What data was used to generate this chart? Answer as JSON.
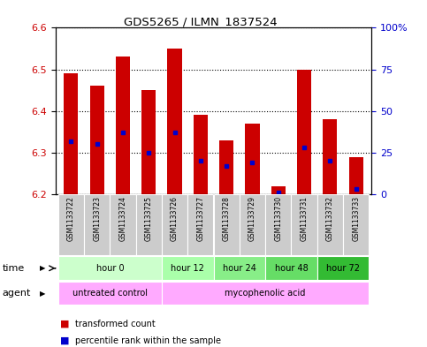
{
  "title": "GDS5265 / ILMN_1837524",
  "samples": [
    "GSM1133722",
    "GSM1133723",
    "GSM1133724",
    "GSM1133725",
    "GSM1133726",
    "GSM1133727",
    "GSM1133728",
    "GSM1133729",
    "GSM1133730",
    "GSM1133731",
    "GSM1133732",
    "GSM1133733"
  ],
  "transformed_counts": [
    6.49,
    6.46,
    6.53,
    6.45,
    6.55,
    6.39,
    6.33,
    6.37,
    6.22,
    6.5,
    6.38,
    6.29
  ],
  "percentile_ranks": [
    32,
    30,
    37,
    25,
    37,
    20,
    17,
    19,
    1,
    28,
    20,
    3
  ],
  "ylim_left": [
    6.2,
    6.6
  ],
  "ylim_right": [
    0,
    100
  ],
  "bar_color": "#cc0000",
  "blue_color": "#0000cc",
  "baseline": 6.2,
  "time_groups": [
    {
      "label": "hour 0",
      "start": 0,
      "end": 4,
      "color": "#ccffcc"
    },
    {
      "label": "hour 12",
      "start": 4,
      "end": 6,
      "color": "#aaffaa"
    },
    {
      "label": "hour 24",
      "start": 6,
      "end": 8,
      "color": "#88ee88"
    },
    {
      "label": "hour 48",
      "start": 8,
      "end": 10,
      "color": "#66dd66"
    },
    {
      "label": "hour 72",
      "start": 10,
      "end": 12,
      "color": "#33bb33"
    }
  ],
  "agent_groups": [
    {
      "label": "untreated control",
      "start": 0,
      "end": 4,
      "color": "#ffaaff"
    },
    {
      "label": "mycophenolic acid",
      "start": 4,
      "end": 12,
      "color": "#ffaaff"
    }
  ],
  "bg_color": "#ffffff",
  "tick_label_color_left": "#cc0000",
  "tick_label_color_right": "#0000cc"
}
